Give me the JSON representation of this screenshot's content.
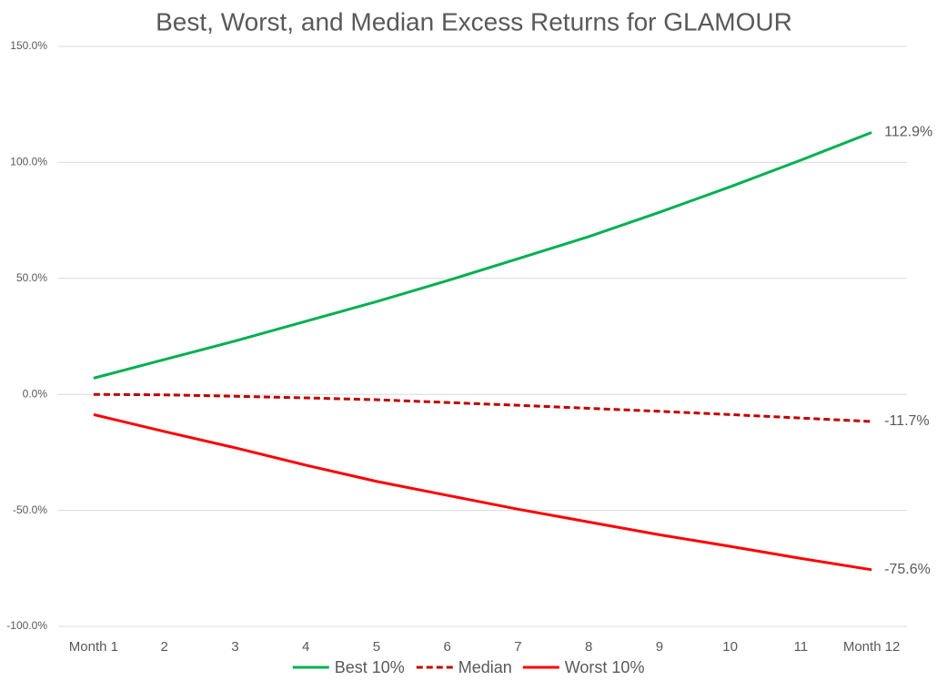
{
  "chart_data": {
    "type": "line",
    "title": "Best, Worst, and Median Excess Returns for GLAMOUR",
    "categories": [
      "Month 1",
      "2",
      "3",
      "4",
      "5",
      "6",
      "7",
      "8",
      "9",
      "10",
      "11",
      "Month 12"
    ],
    "ylim": [
      -100,
      150
    ],
    "yticks": [
      {
        "value": -100,
        "label": "-100.0%"
      },
      {
        "value": -50,
        "label": "-50.0%"
      },
      {
        "value": 0,
        "label": "0.0%"
      },
      {
        "value": 50,
        "label": "50.0%"
      },
      {
        "value": 100,
        "label": "100.0%"
      },
      {
        "value": 150,
        "label": "150.0%"
      }
    ],
    "grid": true,
    "legend": "bottom",
    "series": [
      {
        "name": "Best 10%",
        "color": "#00b050",
        "dashed": false,
        "values": [
          7,
          15,
          23,
          31.5,
          40,
          49,
          58.5,
          68,
          78.5,
          89.5,
          101,
          112.9
        ],
        "value_labels": [
          null,
          null,
          null,
          null,
          null,
          null,
          null,
          null,
          null,
          null,
          null,
          "112.9%"
        ]
      },
      {
        "name": "Median",
        "color": "#c00000",
        "dashed": true,
        "values": [
          0,
          -0.2,
          -0.8,
          -1.5,
          -2.3,
          -3.5,
          -4.7,
          -6,
          -7.3,
          -8.7,
          -10.2,
          -11.7
        ],
        "value_labels": [
          null,
          null,
          null,
          null,
          null,
          null,
          null,
          null,
          null,
          null,
          null,
          "-11.7%"
        ]
      },
      {
        "name": "Worst 10%",
        "color": "#ff0000",
        "dashed": false,
        "values": [
          -8.7,
          -16,
          -23,
          -30.5,
          -37.5,
          -43.5,
          -49.5,
          -55,
          -60.5,
          -65.5,
          -70.7,
          -75.6
        ],
        "value_labels": [
          null,
          null,
          null,
          null,
          null,
          null,
          null,
          null,
          null,
          null,
          null,
          "-75.6%"
        ]
      }
    ]
  }
}
